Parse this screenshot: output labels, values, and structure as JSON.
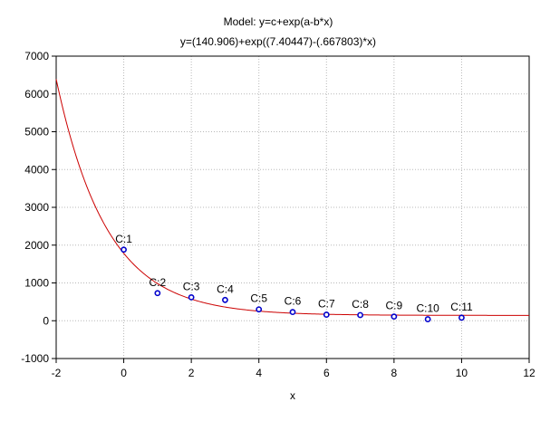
{
  "chart_data": {
    "type": "scatter",
    "title": "Model: y=c+exp(a-b*x)",
    "subtitle": "y=(140.906)+exp((7.40447)-(.667803)*x)",
    "xlabel": "x",
    "ylabel": "",
    "xlim": [
      -2,
      12
    ],
    "ylim": [
      -1000,
      7000
    ],
    "x_ticks": [
      -2,
      0,
      2,
      4,
      6,
      8,
      10,
      12
    ],
    "y_ticks": [
      -1000,
      0,
      1000,
      2000,
      3000,
      4000,
      5000,
      6000,
      7000
    ],
    "grid": true,
    "model": {
      "c": 140.906,
      "a": 7.40447,
      "b": 0.667803
    },
    "points": [
      {
        "label": "C:1",
        "x": 0,
        "y": 1880
      },
      {
        "label": "C:2",
        "x": 1,
        "y": 730
      },
      {
        "label": "C:3",
        "x": 2,
        "y": 620
      },
      {
        "label": "C:4",
        "x": 3,
        "y": 550
      },
      {
        "label": "C:5",
        "x": 4,
        "y": 300
      },
      {
        "label": "C:6",
        "x": 5,
        "y": 230
      },
      {
        "label": "C:7",
        "x": 6,
        "y": 160
      },
      {
        "label": "C:8",
        "x": 7,
        "y": 150
      },
      {
        "label": "C:9",
        "x": 8,
        "y": 110
      },
      {
        "label": "C:10",
        "x": 9,
        "y": 40
      },
      {
        "label": "C:11",
        "x": 10,
        "y": 80
      }
    ],
    "colors": {
      "curve": "#cc0000",
      "points": "#0000cc",
      "grid": "#b8b8b8",
      "axis": "#000000"
    }
  }
}
